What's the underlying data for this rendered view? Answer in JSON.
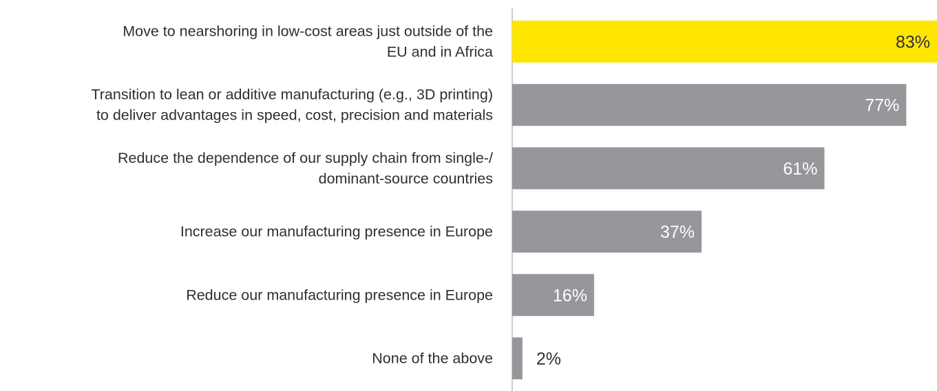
{
  "chart_data": {
    "type": "bar",
    "orientation": "horizontal",
    "categories": [
      [
        "Move to nearshoring in low-cost areas just outside of the",
        "EU and in Africa"
      ],
      [
        "Transition to lean or additive manufacturing (e.g., 3D printing)",
        "to deliver advantages in speed, cost, precision and materials"
      ],
      [
        "Reduce the dependence of our supply chain from single-/",
        "dominant-source countries"
      ],
      [
        "Increase our manufacturing presence in Europe"
      ],
      [
        "Reduce our manufacturing presence in Europe"
      ],
      [
        "None of the above"
      ]
    ],
    "values": [
      83,
      77,
      61,
      37,
      16,
      2
    ],
    "value_labels": [
      "83%",
      "77%",
      "61%",
      "37%",
      "16%",
      "2%"
    ],
    "highlight_index": 0,
    "xlim": [
      0,
      83
    ],
    "grid": false,
    "legend": "none",
    "colors": {
      "highlight": "#ffe600",
      "bar": "#96969b",
      "axis": "#9a9a9a",
      "label_text": "#2e2e38",
      "value_on_highlight": "#2e2e38",
      "value_on_bar": "#ffffff",
      "value_outside": "#2e2e38"
    }
  }
}
